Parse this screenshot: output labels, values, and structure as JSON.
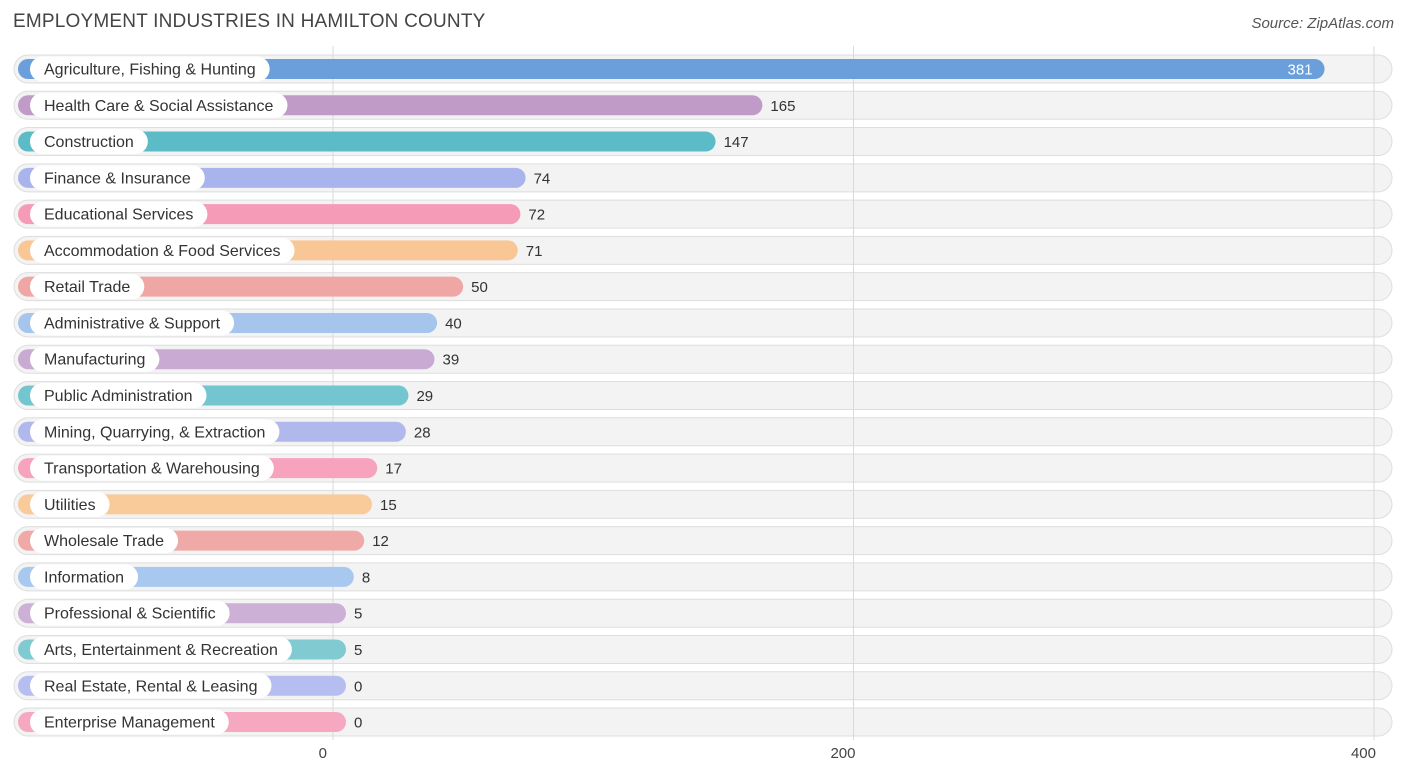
{
  "title": "EMPLOYMENT INDUSTRIES IN HAMILTON COUNTY",
  "source": "Source: ZipAtlas.com",
  "chart_data": {
    "type": "bar",
    "orientation": "horizontal",
    "title": "EMPLOYMENT INDUSTRIES IN HAMILTON COUNTY",
    "xlim": [
      0,
      400
    ],
    "xticks": [
      0,
      200,
      400
    ],
    "grid": true,
    "categories": [
      "Agriculture, Fishing & Hunting",
      "Health Care & Social Assistance",
      "Construction",
      "Finance & Insurance",
      "Educational Services",
      "Accommodation & Food Services",
      "Retail Trade",
      "Administrative & Support",
      "Manufacturing",
      "Public Administration",
      "Mining, Quarrying, & Extraction",
      "Transportation & Warehousing",
      "Utilities",
      "Wholesale Trade",
      "Information",
      "Professional & Scientific",
      "Arts, Entertainment & Recreation",
      "Real Estate, Rental & Leasing",
      "Enterprise Management"
    ],
    "values": [
      381,
      165,
      147,
      74,
      72,
      71,
      50,
      40,
      39,
      29,
      28,
      17,
      15,
      12,
      8,
      5,
      5,
      0,
      0
    ],
    "colors": [
      "#6a9fdc",
      "#c09bc8",
      "#5bbcc8",
      "#aab4ec",
      "#f59ab7",
      "#f9c795",
      "#efa7a5",
      "#a6c5ec",
      "#c9aad2",
      "#73c6cf",
      "#b0b8ec",
      "#f7a3be",
      "#f9cb9b",
      "#efaaa8",
      "#a8c8ef",
      "#ccb0d6",
      "#82cad2",
      "#b6bdf0",
      "#f6a8c0"
    ]
  }
}
